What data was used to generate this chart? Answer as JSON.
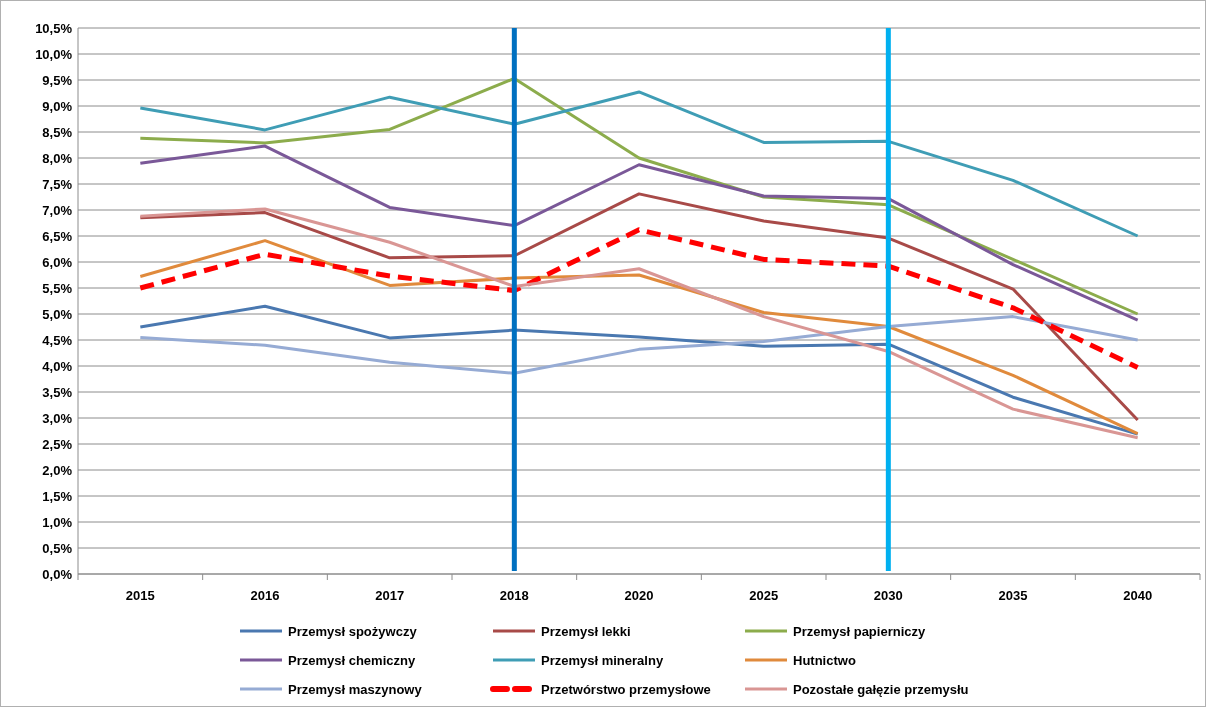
{
  "chart_data": {
    "type": "line",
    "categories": [
      "2015",
      "2016",
      "2017",
      "2018",
      "2020",
      "2025",
      "2030",
      "2035",
      "2040"
    ],
    "ylim": [
      0,
      10.5
    ],
    "yticks": [
      {
        "value": 0,
        "label": "0,0%"
      },
      {
        "value": 0.5,
        "label": "0,5%"
      },
      {
        "value": 1,
        "label": "1,0%"
      },
      {
        "value": 1.5,
        "label": "1,5%"
      },
      {
        "value": 2,
        "label": "2,0%"
      },
      {
        "value": 2.5,
        "label": "2,5%"
      },
      {
        "value": 3,
        "label": "3,0%"
      },
      {
        "value": 3.5,
        "label": "3,5%"
      },
      {
        "value": 4,
        "label": "4,0%"
      },
      {
        "value": 4.5,
        "label": "4,5%"
      },
      {
        "value": 5,
        "label": "5,0%"
      },
      {
        "value": 5.5,
        "label": "5,5%"
      },
      {
        "value": 6,
        "label": "6,0%"
      },
      {
        "value": 6.5,
        "label": "6,5%"
      },
      {
        "value": 7,
        "label": "7,0%"
      },
      {
        "value": 7.5,
        "label": "7,5%"
      },
      {
        "value": 8,
        "label": "8,0%"
      },
      {
        "value": 8.5,
        "label": "8,5%"
      },
      {
        "value": 9,
        "label": "9,0%"
      },
      {
        "value": 9.5,
        "label": "9,5%"
      },
      {
        "value": 10,
        "label": "10,0%"
      },
      {
        "value": 10.5,
        "label": "10,5%"
      }
    ],
    "grid": "y",
    "legend": "bottom",
    "marker": "none",
    "series": [
      {
        "name": "Przemysł spożywczy",
        "color": "#4a78b0",
        "values": [
          4.75,
          5.15,
          4.54,
          4.69,
          4.56,
          4.38,
          4.42,
          3.4,
          2.69
        ]
      },
      {
        "name": "Przemysł lekki",
        "color": "#a84a48",
        "values": [
          6.85,
          6.95,
          6.08,
          6.12,
          7.31,
          6.79,
          6.46,
          5.48,
          2.96
        ]
      },
      {
        "name": "Przemysł papierniczy",
        "color": "#8cac4c",
        "values": [
          8.38,
          8.29,
          8.55,
          9.53,
          8.0,
          7.25,
          7.1,
          6.05,
          5.0
        ]
      },
      {
        "name": "Przemysł chemiczny",
        "color": "#7a5898",
        "values": [
          7.9,
          8.23,
          7.05,
          6.7,
          7.87,
          7.27,
          7.22,
          5.95,
          4.88
        ]
      },
      {
        "name": "Przemysł mineralny",
        "color": "#3f9db5",
        "values": [
          8.96,
          8.54,
          9.17,
          8.65,
          9.27,
          8.3,
          8.32,
          7.57,
          6.5
        ]
      },
      {
        "name": "Hutnictwo",
        "color": "#e08a3c",
        "values": [
          5.72,
          6.41,
          5.55,
          5.69,
          5.75,
          5.03,
          4.76,
          3.82,
          2.7
        ]
      },
      {
        "name": "Przemysł maszynowy",
        "color": "#96abd4",
        "values": [
          4.55,
          4.4,
          4.07,
          3.86,
          4.32,
          4.47,
          4.76,
          4.95,
          4.5
        ]
      },
      {
        "name": "Przetwórstwo przemysłowe",
        "color": "#ff0000",
        "line_style": "dashed",
        "values": [
          5.5,
          6.15,
          5.73,
          5.45,
          6.62,
          6.05,
          5.92,
          5.12,
          3.97
        ]
      },
      {
        "name": "Pozostałe gałęzie przemysłu",
        "color": "#d99694",
        "values": [
          6.88,
          7.02,
          6.38,
          5.53,
          5.87,
          4.95,
          4.28,
          3.17,
          2.62
        ]
      }
    ],
    "ref_lines": [
      {
        "axis": "x",
        "value": "2018",
        "color": "#0070c0"
      },
      {
        "axis": "x",
        "value": "2030",
        "color": "#00b0f0"
      }
    ]
  }
}
